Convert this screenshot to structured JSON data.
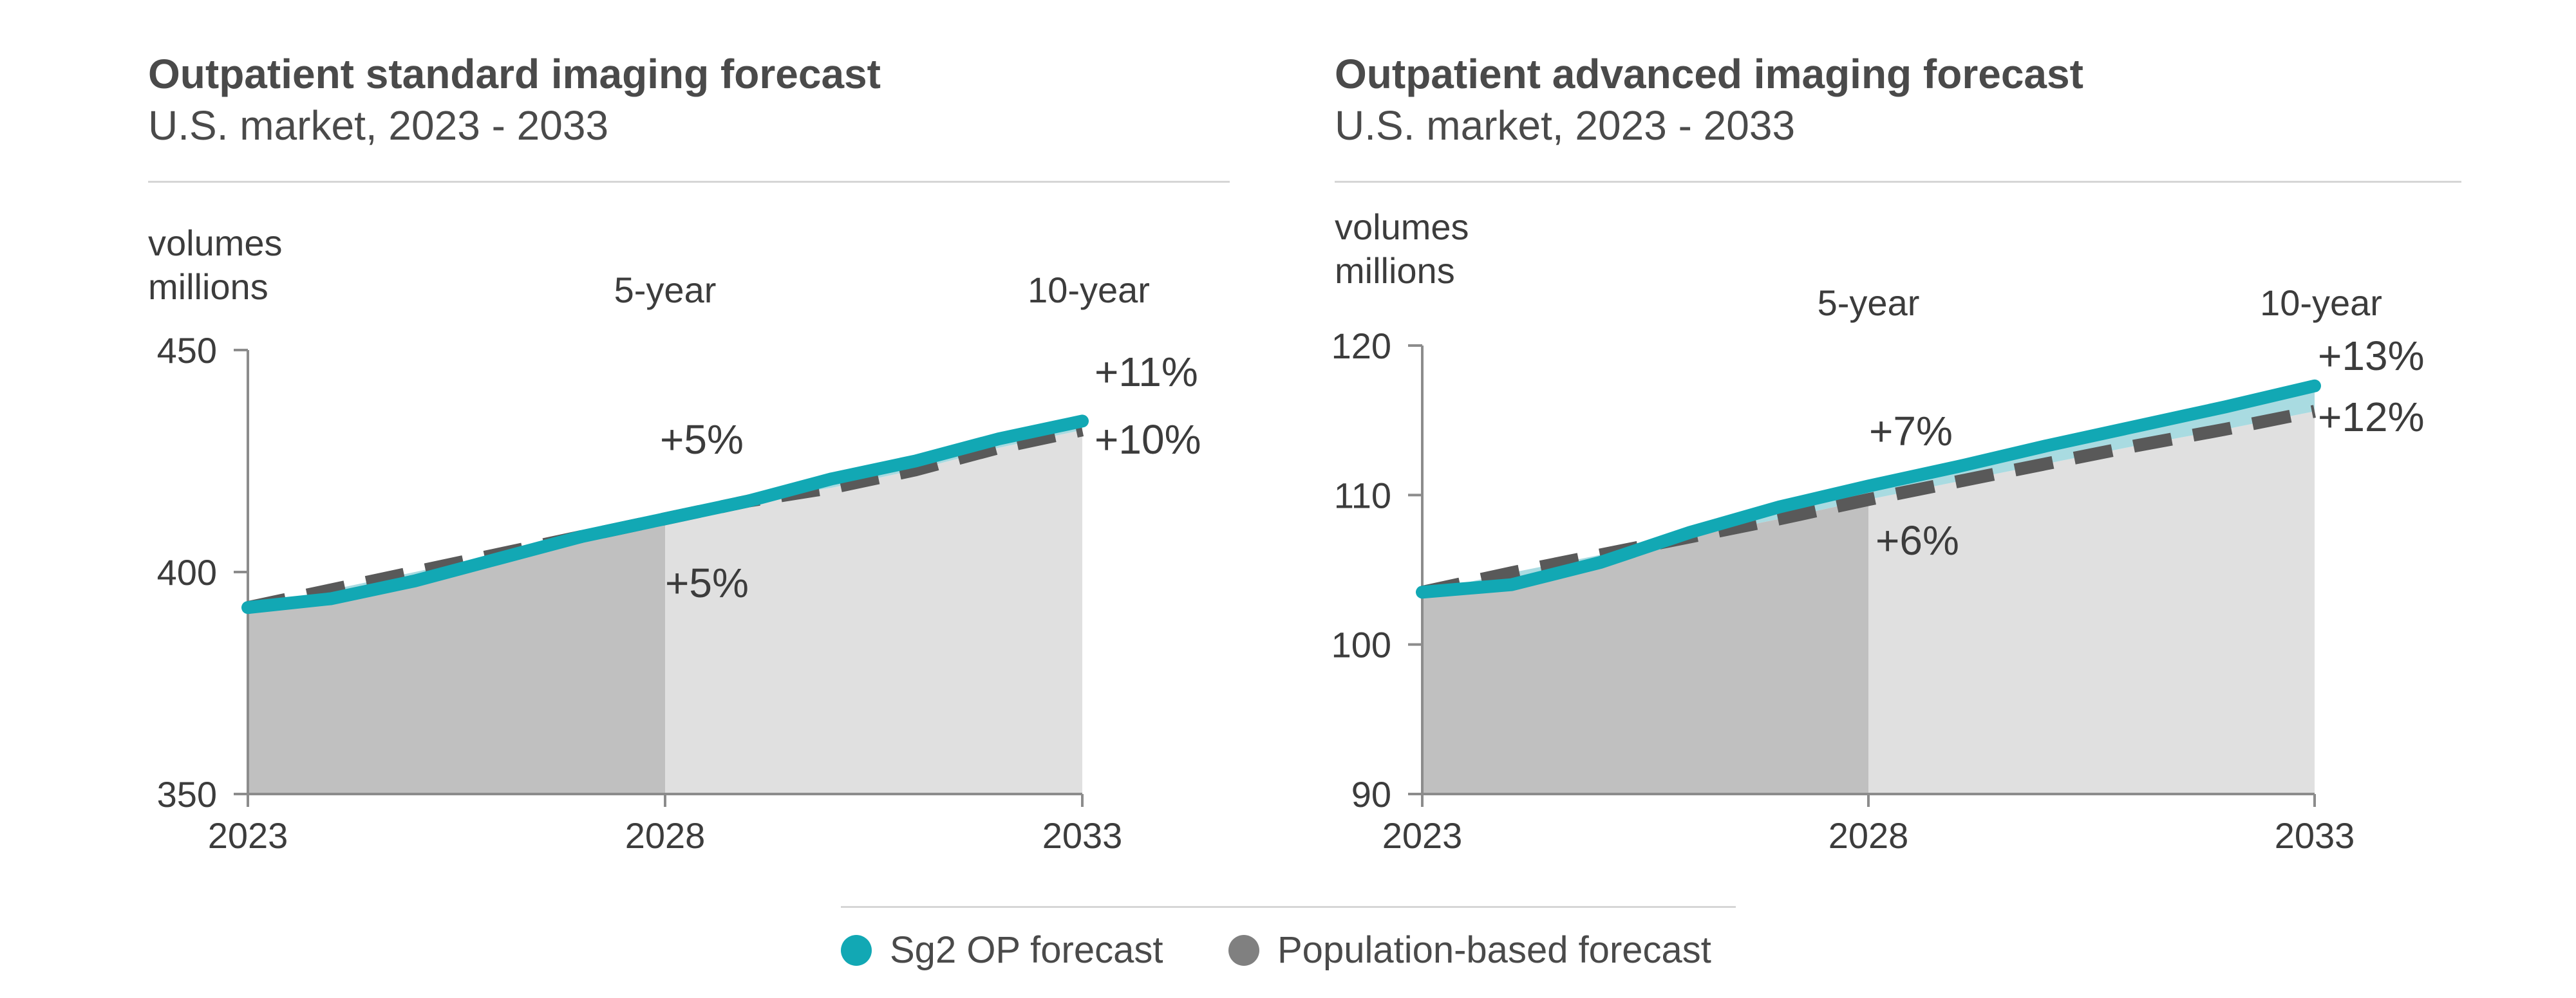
{
  "colors": {
    "sg2": "#12a8b4",
    "sg2_band": "#a9dbe1",
    "population": "#595959",
    "area_5yr": "#c0c0c0",
    "area_10yr": "#e0e0e0",
    "axis": "#8c8c8c"
  },
  "legend": {
    "items": [
      {
        "label": "Sg2 OP forecast",
        "color": "#12a8b4"
      },
      {
        "label": "Population-based forecast",
        "color": "#808080"
      }
    ]
  },
  "chart_data": [
    {
      "type": "area",
      "title": "Outpatient standard imaging forecast",
      "subtitle": "U.S. market, 2023 - 2033",
      "ylabel_line1": "volumes",
      "ylabel_line2": "millions",
      "ylim": [
        350,
        450
      ],
      "yticks": [
        "350",
        "400",
        "450"
      ],
      "xticks": [
        "2023",
        "2028",
        "2033"
      ],
      "period_labels": [
        "5-year",
        "10-year"
      ],
      "series": [
        {
          "name": "Sg2 OP forecast",
          "x": [
            2023,
            2024,
            2025,
            2026,
            2027,
            2028,
            2029,
            2030,
            2031,
            2032,
            2033
          ],
          "values": [
            392,
            394,
            398,
            403,
            408,
            412,
            416,
            421,
            425,
            430,
            434
          ]
        },
        {
          "name": "Population-based forecast",
          "x": [
            2023,
            2024,
            2025,
            2026,
            2027,
            2028,
            2029,
            2030,
            2031,
            2032,
            2033
          ],
          "values": [
            392,
            396,
            400,
            404,
            408,
            412,
            416,
            419,
            423,
            428,
            432
          ]
        }
      ],
      "annotations": {
        "sg2_5yr": "+5%",
        "pop_5yr": "+5%",
        "sg2_10yr": "+11%",
        "pop_10yr": "+10%"
      }
    },
    {
      "type": "area",
      "title": "Outpatient advanced imaging forecast",
      "subtitle": "U.S. market, 2023 - 2033",
      "ylabel_line1": "volumes",
      "ylabel_line2": "millions",
      "ylim": [
        90,
        120
      ],
      "yticks": [
        "90",
        "100",
        "110",
        "120"
      ],
      "xticks": [
        "2023",
        "2028",
        "2033"
      ],
      "period_labels": [
        "5-year",
        "10-year"
      ],
      "series": [
        {
          "name": "Sg2 OP forecast",
          "x": [
            2023,
            2024,
            2025,
            2026,
            2027,
            2028,
            2029,
            2030,
            2031,
            2032,
            2033
          ],
          "values": [
            103.5,
            104.0,
            105.5,
            107.5,
            109.2,
            110.6,
            111.9,
            113.3,
            114.6,
            115.9,
            117.3
          ]
        },
        {
          "name": "Population-based forecast",
          "x": [
            2023,
            2024,
            2025,
            2026,
            2027,
            2028,
            2029,
            2030,
            2031,
            2032,
            2033
          ],
          "values": [
            103.5,
            104.8,
            106.0,
            107.2,
            108.4,
            109.7,
            110.9,
            112.1,
            113.3,
            114.4,
            115.6
          ]
        }
      ],
      "annotations": {
        "sg2_5yr": "+7%",
        "pop_5yr": "+6%",
        "sg2_10yr": "+13%",
        "pop_10yr": "+12%"
      }
    }
  ]
}
